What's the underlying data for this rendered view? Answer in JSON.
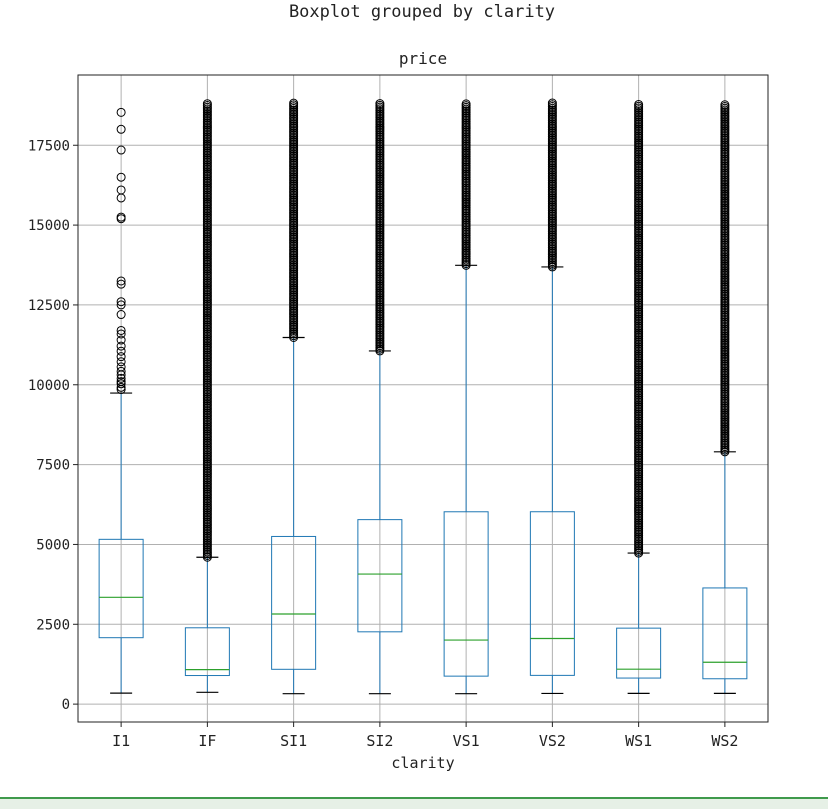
{
  "suptitle": "Boxplot grouped by clarity",
  "chart_data": {
    "type": "boxplot",
    "title": "price",
    "xlabel": "clarity",
    "ylabel": "",
    "ylim": [
      -560,
      19700
    ],
    "yticks": [
      0,
      2500,
      5000,
      7500,
      10000,
      12500,
      15000,
      17500
    ],
    "grid": true,
    "colors": {
      "box": "#1f77b4",
      "median": "#2ca02c",
      "outlier": "#000000",
      "grid": "#b0b0b0"
    },
    "categories": [
      "I1",
      "IF",
      "SI1",
      "SI2",
      "VS1",
      "VS2",
      "WS1",
      "WS2"
    ],
    "boxes": [
      {
        "label": "I1",
        "whisker_low": 345,
        "q1": 2080,
        "median": 3344,
        "q3": 5160,
        "whisker_high": 9740,
        "outliers": [
          9850,
          9920,
          10030,
          10100,
          10200,
          10310,
          10420,
          10560,
          10720,
          10880,
          11050,
          11210,
          11400,
          11590,
          11700,
          12200,
          12500,
          12600,
          13150,
          13250,
          15200,
          15250,
          15850,
          16100,
          16500,
          17350,
          18000,
          18530
        ]
      },
      {
        "label": "IF",
        "whisker_low": 369,
        "q1": 895,
        "median": 1080,
        "q3": 2390,
        "whisker_high": 4600,
        "outlier_range": [
          4600,
          18800
        ]
      },
      {
        "label": "SI1",
        "whisker_low": 326,
        "q1": 1090,
        "median": 2822,
        "q3": 5250,
        "whisker_high": 11480,
        "outlier_range": [
          11480,
          18818
        ]
      },
      {
        "label": "SI2",
        "whisker_low": 326,
        "q1": 2264,
        "median": 4072,
        "q3": 5777,
        "whisker_high": 11060,
        "outlier_range": [
          11060,
          18804
        ]
      },
      {
        "label": "VS1",
        "whisker_low": 327,
        "q1": 876,
        "median": 2005,
        "q3": 6023,
        "whisker_high": 13740,
        "outlier_range": [
          13740,
          18795
        ]
      },
      {
        "label": "VS2",
        "whisker_low": 334,
        "q1": 900,
        "median": 2054,
        "q3": 6024,
        "whisker_high": 13690,
        "outlier_range": [
          13690,
          18823
        ]
      },
      {
        "label": "WS1",
        "whisker_low": 336,
        "q1": 816,
        "median": 1093,
        "q3": 2379,
        "whisker_high": 4730,
        "outlier_range": [
          4730,
          18777
        ]
      },
      {
        "label": "WS2",
        "whisker_low": 336,
        "q1": 794,
        "median": 1311,
        "q3": 3638,
        "whisker_high": 7900,
        "outlier_range": [
          7900,
          18768
        ]
      }
    ]
  }
}
